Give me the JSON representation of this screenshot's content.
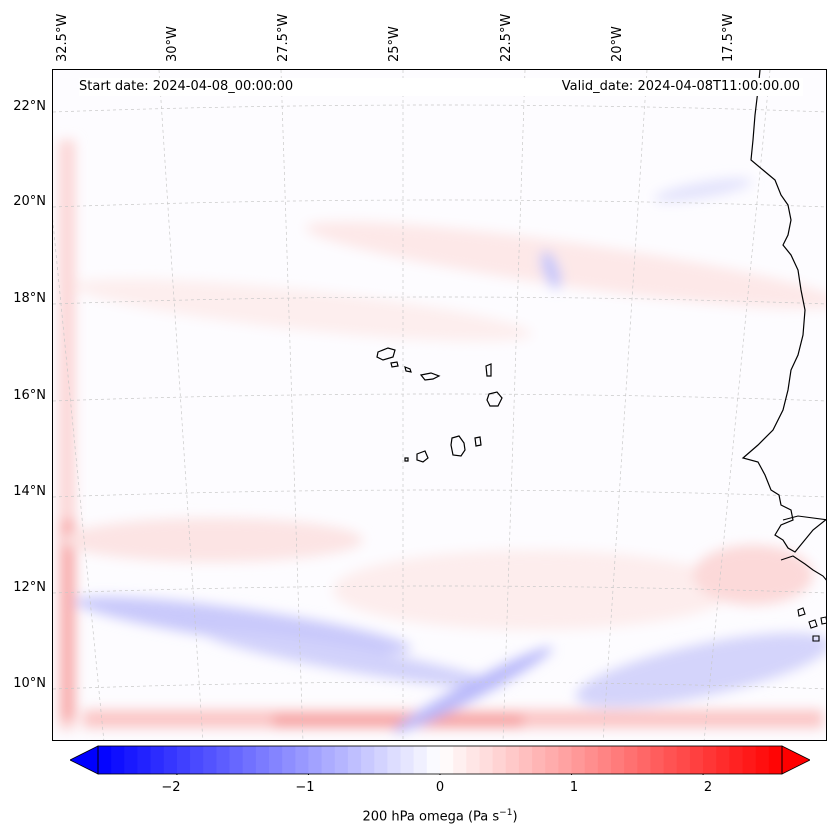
{
  "map": {
    "start_label": "Start date: 2024-04-08_00:00:00",
    "valid_label": "Valid_date: 2024-04-08T11:00:00.00",
    "lon_labels": [
      "32.5°W",
      "30°W",
      "27.5°W",
      "25°W",
      "22.5°W",
      "20°W",
      "17.5°W"
    ],
    "lat_labels": [
      "22°N",
      "20°N",
      "18°N",
      "16°N",
      "14°N",
      "12°N",
      "10°N"
    ],
    "coastline_color": "#000000",
    "gridline_color": "#c8c8c8"
  },
  "colorbar": {
    "title_prefix": "200 hPa omega (Pa s",
    "title_sup": "−1",
    "title_suffix": ")",
    "ticks": [
      "−2",
      "−1",
      "0",
      "1",
      "2"
    ],
    "min": -2.6,
    "max": 2.6,
    "neg_color": "#0000ff",
    "pos_color": "#ff0000",
    "mid_color": "#ffffff"
  }
}
